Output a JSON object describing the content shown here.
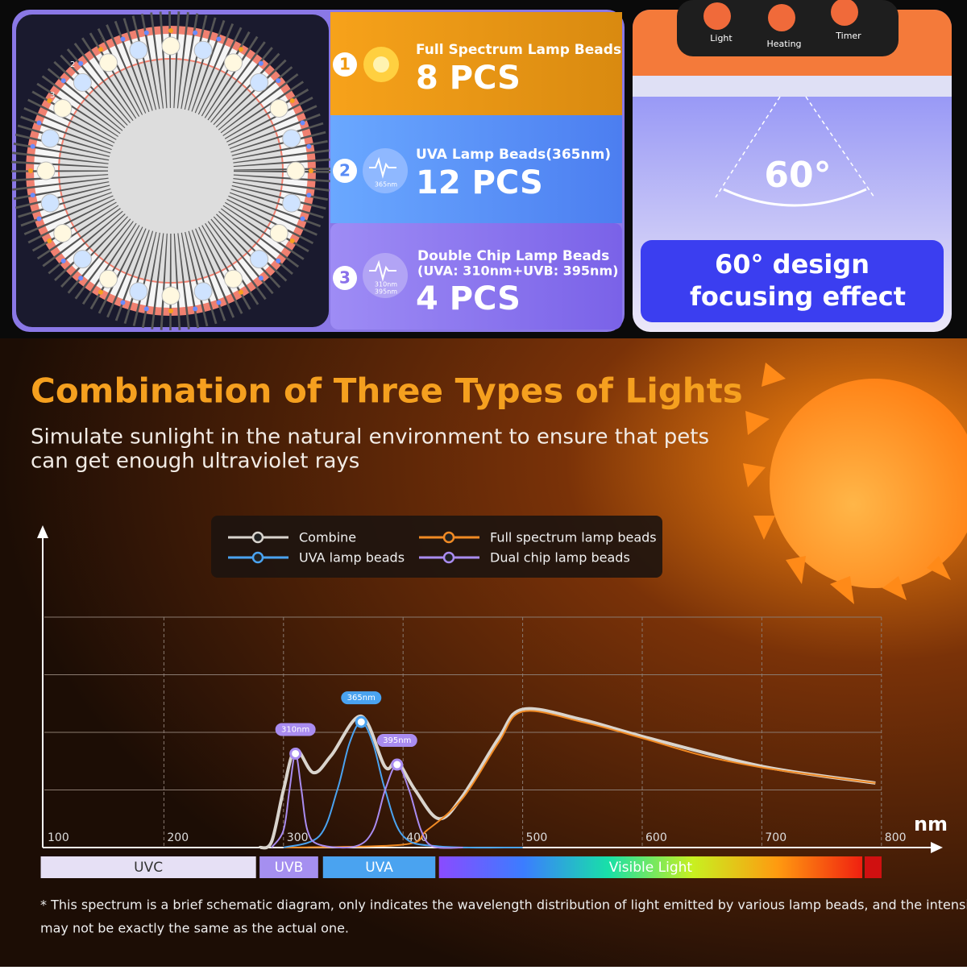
{
  "beads": [
    {
      "number": "1",
      "title": "Full Spectrum Lamp Beads",
      "count": "8 PCS"
    },
    {
      "number": "2",
      "title": "UVA Lamp Beads(365nm)",
      "count": "12 PCS",
      "icon_label": "365nm"
    },
    {
      "number": "3",
      "title": "Double Chip Lamp Beads",
      "subtitle": "(UVA: 310nm+UVB: 395nm)",
      "count": "4 PCS",
      "icon_label": [
        "310nm",
        "395nm"
      ]
    }
  ],
  "ring_labels": [
    "1",
    "2",
    "3"
  ],
  "controls": [
    "Light",
    "Heating",
    "Timer"
  ],
  "angle": "60°",
  "focus": [
    "60° design",
    "focusing effect"
  ],
  "title": "Combination of Three Types of Lights",
  "subtitle": [
    "Simulate sunlight in the natural environment to ensure that pets",
    "can get enough ultraviolet rays"
  ],
  "chart_data": {
    "type": "line",
    "x_label": "nm",
    "xlim": [
      100,
      850
    ],
    "xticks": [
      100,
      200,
      300,
      400,
      500,
      600,
      700,
      800
    ],
    "ylim": [
      0,
      4
    ],
    "ygrid": [
      1,
      2,
      3,
      4
    ],
    "series": [
      {
        "name": "Combine",
        "color": "#d9d4cd",
        "x": [
          280,
          290,
          300,
          310,
          325,
          340,
          365,
          385,
          395,
          410,
          430,
          450,
          480,
          500,
          550,
          600,
          700,
          795
        ],
        "values": [
          0,
          0.1,
          1.0,
          1.7,
          1.3,
          1.6,
          2.28,
          1.4,
          1.5,
          1.0,
          0.5,
          0.9,
          1.9,
          2.4,
          2.22,
          1.93,
          1.41,
          1.12
        ]
      },
      {
        "name": "Full spectrum lamp beads",
        "color": "#f08a24",
        "x": [
          300,
          400,
          420,
          450,
          480,
          500,
          550,
          600,
          650,
          700,
          750,
          795
        ],
        "values": [
          0,
          0.05,
          0.3,
          0.86,
          1.83,
          2.36,
          2.18,
          1.9,
          1.6,
          1.39,
          1.24,
          1.12
        ]
      },
      {
        "name": "UVA lamp beads",
        "color": "#4aa3f0",
        "x": [
          300,
          330,
          345,
          355,
          365,
          375,
          385,
          400,
          430,
          500
        ],
        "values": [
          0,
          0.2,
          1.0,
          1.8,
          2.18,
          1.8,
          1.0,
          0.2,
          0.02,
          0
        ]
      },
      {
        "name": "Dual chip lamp beads",
        "color": "#a98cf0",
        "x": [
          290,
          300,
          305,
          310,
          315,
          320,
          330,
          360,
          375,
          385,
          395,
          405,
          415,
          425,
          450
        ],
        "values": [
          0,
          0.3,
          1.0,
          1.63,
          1.0,
          0.3,
          0.05,
          0.02,
          0.3,
          1.0,
          1.44,
          1.0,
          0.3,
          0.02,
          0
        ]
      }
    ],
    "annotations": [
      {
        "label": "310nm",
        "x": 310,
        "y": 1.63,
        "color": "#a98cf0"
      },
      {
        "label": "365nm",
        "x": 365,
        "y": 2.18,
        "color": "#4aa3f0"
      },
      {
        "label": "395nm",
        "x": 395,
        "y": 1.44,
        "color": "#a98cf0"
      }
    ],
    "bands": [
      {
        "label": "UVC",
        "range": [
          97,
          277
        ],
        "color": "#e6e0f5"
      },
      {
        "label": "UVB",
        "range": [
          280,
          329
        ],
        "color": "#a58ff0"
      },
      {
        "label": "UVA",
        "range": [
          333,
          427
        ],
        "color": "#4aa3f0"
      },
      {
        "label": "Visible Light",
        "range": [
          430,
          784
        ],
        "color": "gradient"
      }
    ]
  },
  "footnote": [
    "* This spectrum is a brief schematic diagram, only indicates the wavelength distribution of light emitted by various lamp beads, and the intensity",
    "may not be exactly the same as the actual one."
  ]
}
